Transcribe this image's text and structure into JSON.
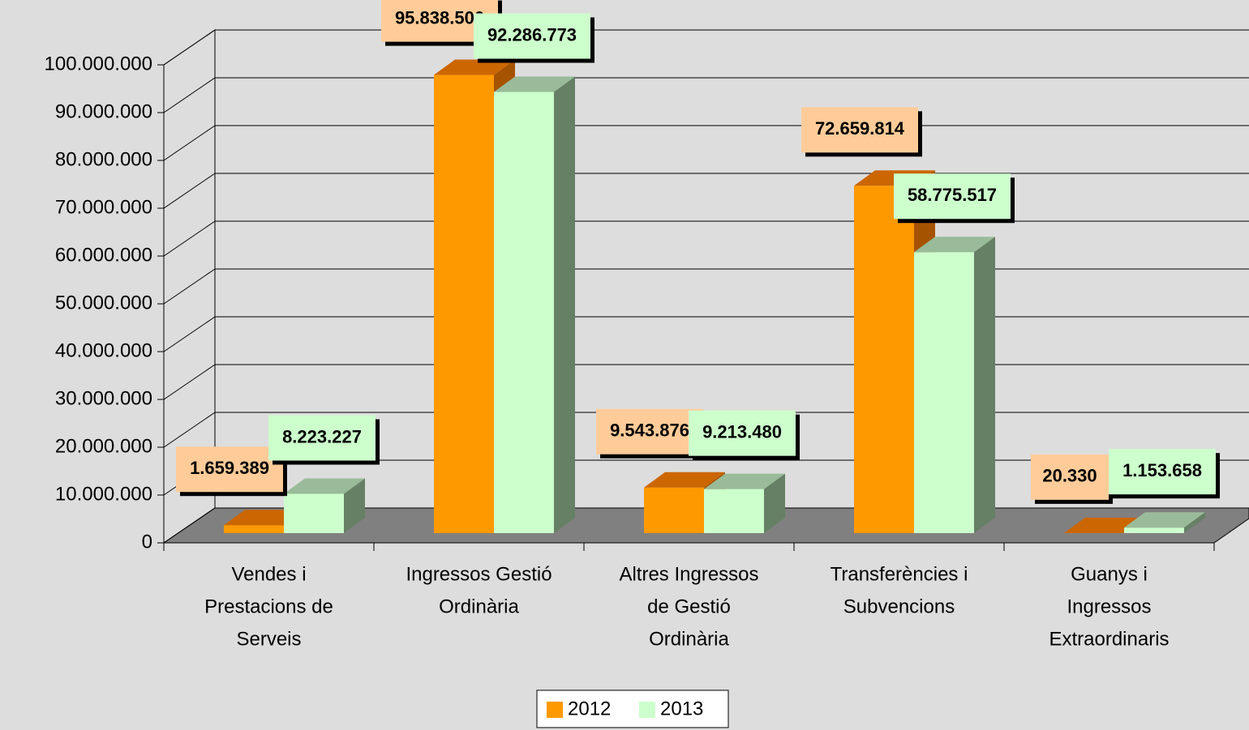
{
  "chart_data": {
    "type": "bar3d",
    "categories": [
      [
        "Vendes i",
        "Prestacions de",
        "Serveis"
      ],
      [
        "Ingressos Gestió",
        "Ordinària"
      ],
      [
        "Altres Ingressos",
        "de Gestió",
        "Ordinària"
      ],
      [
        "Transferències i",
        "Subvencions"
      ],
      [
        "Guanys i",
        "Ingressos",
        "Extraordinaris"
      ]
    ],
    "series": [
      {
        "name": "2012",
        "color": "#ff9900",
        "top_color": "#cc6600",
        "side_color": "#a65300",
        "label_color": "#ffcc99",
        "values": [
          1659389,
          95838506,
          9543876,
          72659814,
          20330
        ],
        "value_labels": [
          "1.659.389",
          "95.838.506",
          "9.543.876",
          "72.659.814",
          "20.330"
        ]
      },
      {
        "name": "2013",
        "color": "#ccffcc",
        "top_color": "#99bb99",
        "side_color": "#668066",
        "label_color": "#ccffcc",
        "values": [
          8223227,
          92286773,
          9213480,
          58775517,
          1153658
        ],
        "value_labels": [
          "8.223.227",
          "92.286.773",
          "9.213.480",
          "58.775.517",
          "1.153.658"
        ]
      }
    ],
    "ylim": [
      0,
      100000000
    ],
    "yticks": [
      0,
      {
        "value": 10000000,
        "label": "10.000.000"
      },
      {
        "value": 20000000,
        "label": "20.000.000"
      },
      {
        "value": 30000000,
        "label": "30.000.000"
      },
      {
        "value": 40000000,
        "label": "40.000.000"
      },
      {
        "value": 50000000,
        "label": "50.000.000"
      },
      {
        "value": 60000000,
        "label": "60.000.000"
      },
      {
        "value": 70000000,
        "label": "70.000.000"
      },
      {
        "value": 80000000,
        "label": "80.000.000"
      },
      {
        "value": 90000000,
        "label": "90.000.000"
      },
      {
        "value": 100000000,
        "label": "100.000.000"
      }
    ],
    "grid": true,
    "legend": "bottom"
  }
}
